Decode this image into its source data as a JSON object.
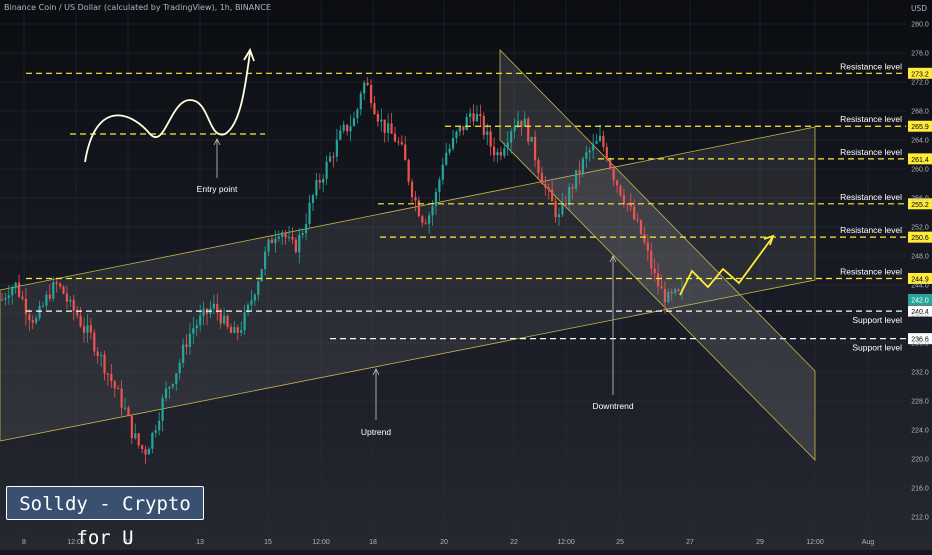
{
  "header": {
    "title": "Binance Coin / US Dollar (calculated by TradingView), 1h, BINANCE",
    "currency": "USD"
  },
  "watermark": "Solldy - Crypto for U",
  "colors": {
    "up": "#26a69a",
    "down": "#ef5350",
    "levels": "#ffeb3b",
    "channel": "#c9b84a"
  },
  "chart_data": {
    "type": "candlestick",
    "y_ticks": [
      "280.0",
      "276.0",
      "272.0",
      "268.0",
      "264.0",
      "260.0",
      "256.0",
      "252.0",
      "248.0",
      "244.0",
      "240.0",
      "236.0",
      "232.0",
      "228.0",
      "224.0",
      "220.0",
      "216.0",
      "212.0"
    ],
    "x_ticks": [
      "8",
      "12:00",
      "11",
      "13",
      "15",
      "12:00",
      "18",
      "20",
      "22",
      "12:00",
      "25",
      "27",
      "29",
      "12:00",
      "Aug"
    ],
    "ylim": [
      210,
      281
    ],
    "price_path": [
      242,
      243.5,
      244,
      242,
      240,
      239,
      241,
      243,
      244,
      243,
      241,
      240,
      238,
      237,
      235,
      233,
      231,
      229,
      227,
      224,
      222,
      221,
      223,
      226,
      229,
      231,
      233,
      236,
      238,
      239,
      240,
      241,
      240,
      238,
      237,
      238,
      240,
      243,
      246,
      249,
      251,
      252,
      250,
      249,
      251,
      254,
      257,
      259,
      261,
      263,
      265,
      266,
      267,
      272,
      271,
      268,
      266,
      265,
      264,
      262,
      258,
      255,
      253,
      254,
      257,
      262,
      263,
      265,
      266,
      268,
      267,
      265,
      263,
      262,
      264,
      266,
      267,
      266,
      263,
      260,
      257,
      255,
      253,
      256,
      258,
      260,
      262,
      263,
      264,
      262,
      259,
      257,
      255,
      253,
      251,
      248,
      245,
      243,
      242,
      242.5,
      242.6
    ],
    "levels": [
      {
        "value": 273.2,
        "label": "273.2",
        "name": "Resistance level"
      },
      {
        "value": 265.9,
        "label": "265.9",
        "name": "Resistance level"
      },
      {
        "value": 261.4,
        "label": "261.4",
        "name": "Resistance level"
      },
      {
        "value": 255.2,
        "label": "255.2",
        "name": "Resistance level"
      },
      {
        "value": 250.6,
        "label": "250.6",
        "name": "Resistance level"
      },
      {
        "value": 244.9,
        "label": "244.9",
        "name": "Resistance level"
      },
      {
        "value": 240.4,
        "label": "240.4",
        "name": "Support level"
      },
      {
        "value": 236.6,
        "label": "236.6",
        "name": "Support level"
      }
    ],
    "current_price": {
      "value": 242.0,
      "label": "242.0"
    },
    "annotations": [
      "Entry point",
      "Uptrend",
      "Downtrend"
    ]
  }
}
